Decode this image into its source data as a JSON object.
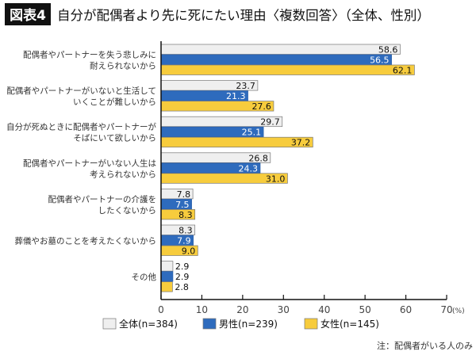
{
  "header": {
    "badge": "図表4",
    "title": "自分が配偶者より先に死にたい理由〈複数回答〉（全体、性別）"
  },
  "note": "注：配偶者がいる人のみ",
  "colors": {
    "全体": "#efefef",
    "男性": "#2e6bbd",
    "女性": "#f7cc3d"
  },
  "chart_data": {
    "type": "bar",
    "orientation": "horizontal",
    "categories": [
      [
        "配偶者やパートナーを失う悲しみに",
        "耐えられないから"
      ],
      [
        "配偶者やパートナーがいないと生活して",
        "いくことが難しいから"
      ],
      [
        "自分が死ぬときに配偶者やパートナーが",
        "そばにいて欲しいから"
      ],
      [
        "配偶者やパートナーがいない人生は",
        "考えられないから"
      ],
      [
        "配偶者やパートナーの介護を",
        "したくないから"
      ],
      [
        "葬儀やお墓のことを考えたくないから"
      ],
      [
        "その他"
      ]
    ],
    "series": [
      {
        "name": "全体(n=384)",
        "values": [
          58.6,
          23.7,
          29.7,
          26.8,
          7.8,
          8.3,
          2.9
        ]
      },
      {
        "name": "男性(n=239)",
        "values": [
          56.5,
          21.3,
          25.1,
          24.3,
          7.5,
          7.9,
          2.9
        ]
      },
      {
        "name": "女性(n=145)",
        "values": [
          62.1,
          27.6,
          37.2,
          31.0,
          8.3,
          9.0,
          2.8
        ]
      }
    ],
    "xlim": [
      0,
      70
    ],
    "xticks": [
      0,
      10,
      20,
      30,
      40,
      50,
      60,
      70
    ],
    "xunit": "(%)",
    "legend": "bottom",
    "grid": false
  }
}
